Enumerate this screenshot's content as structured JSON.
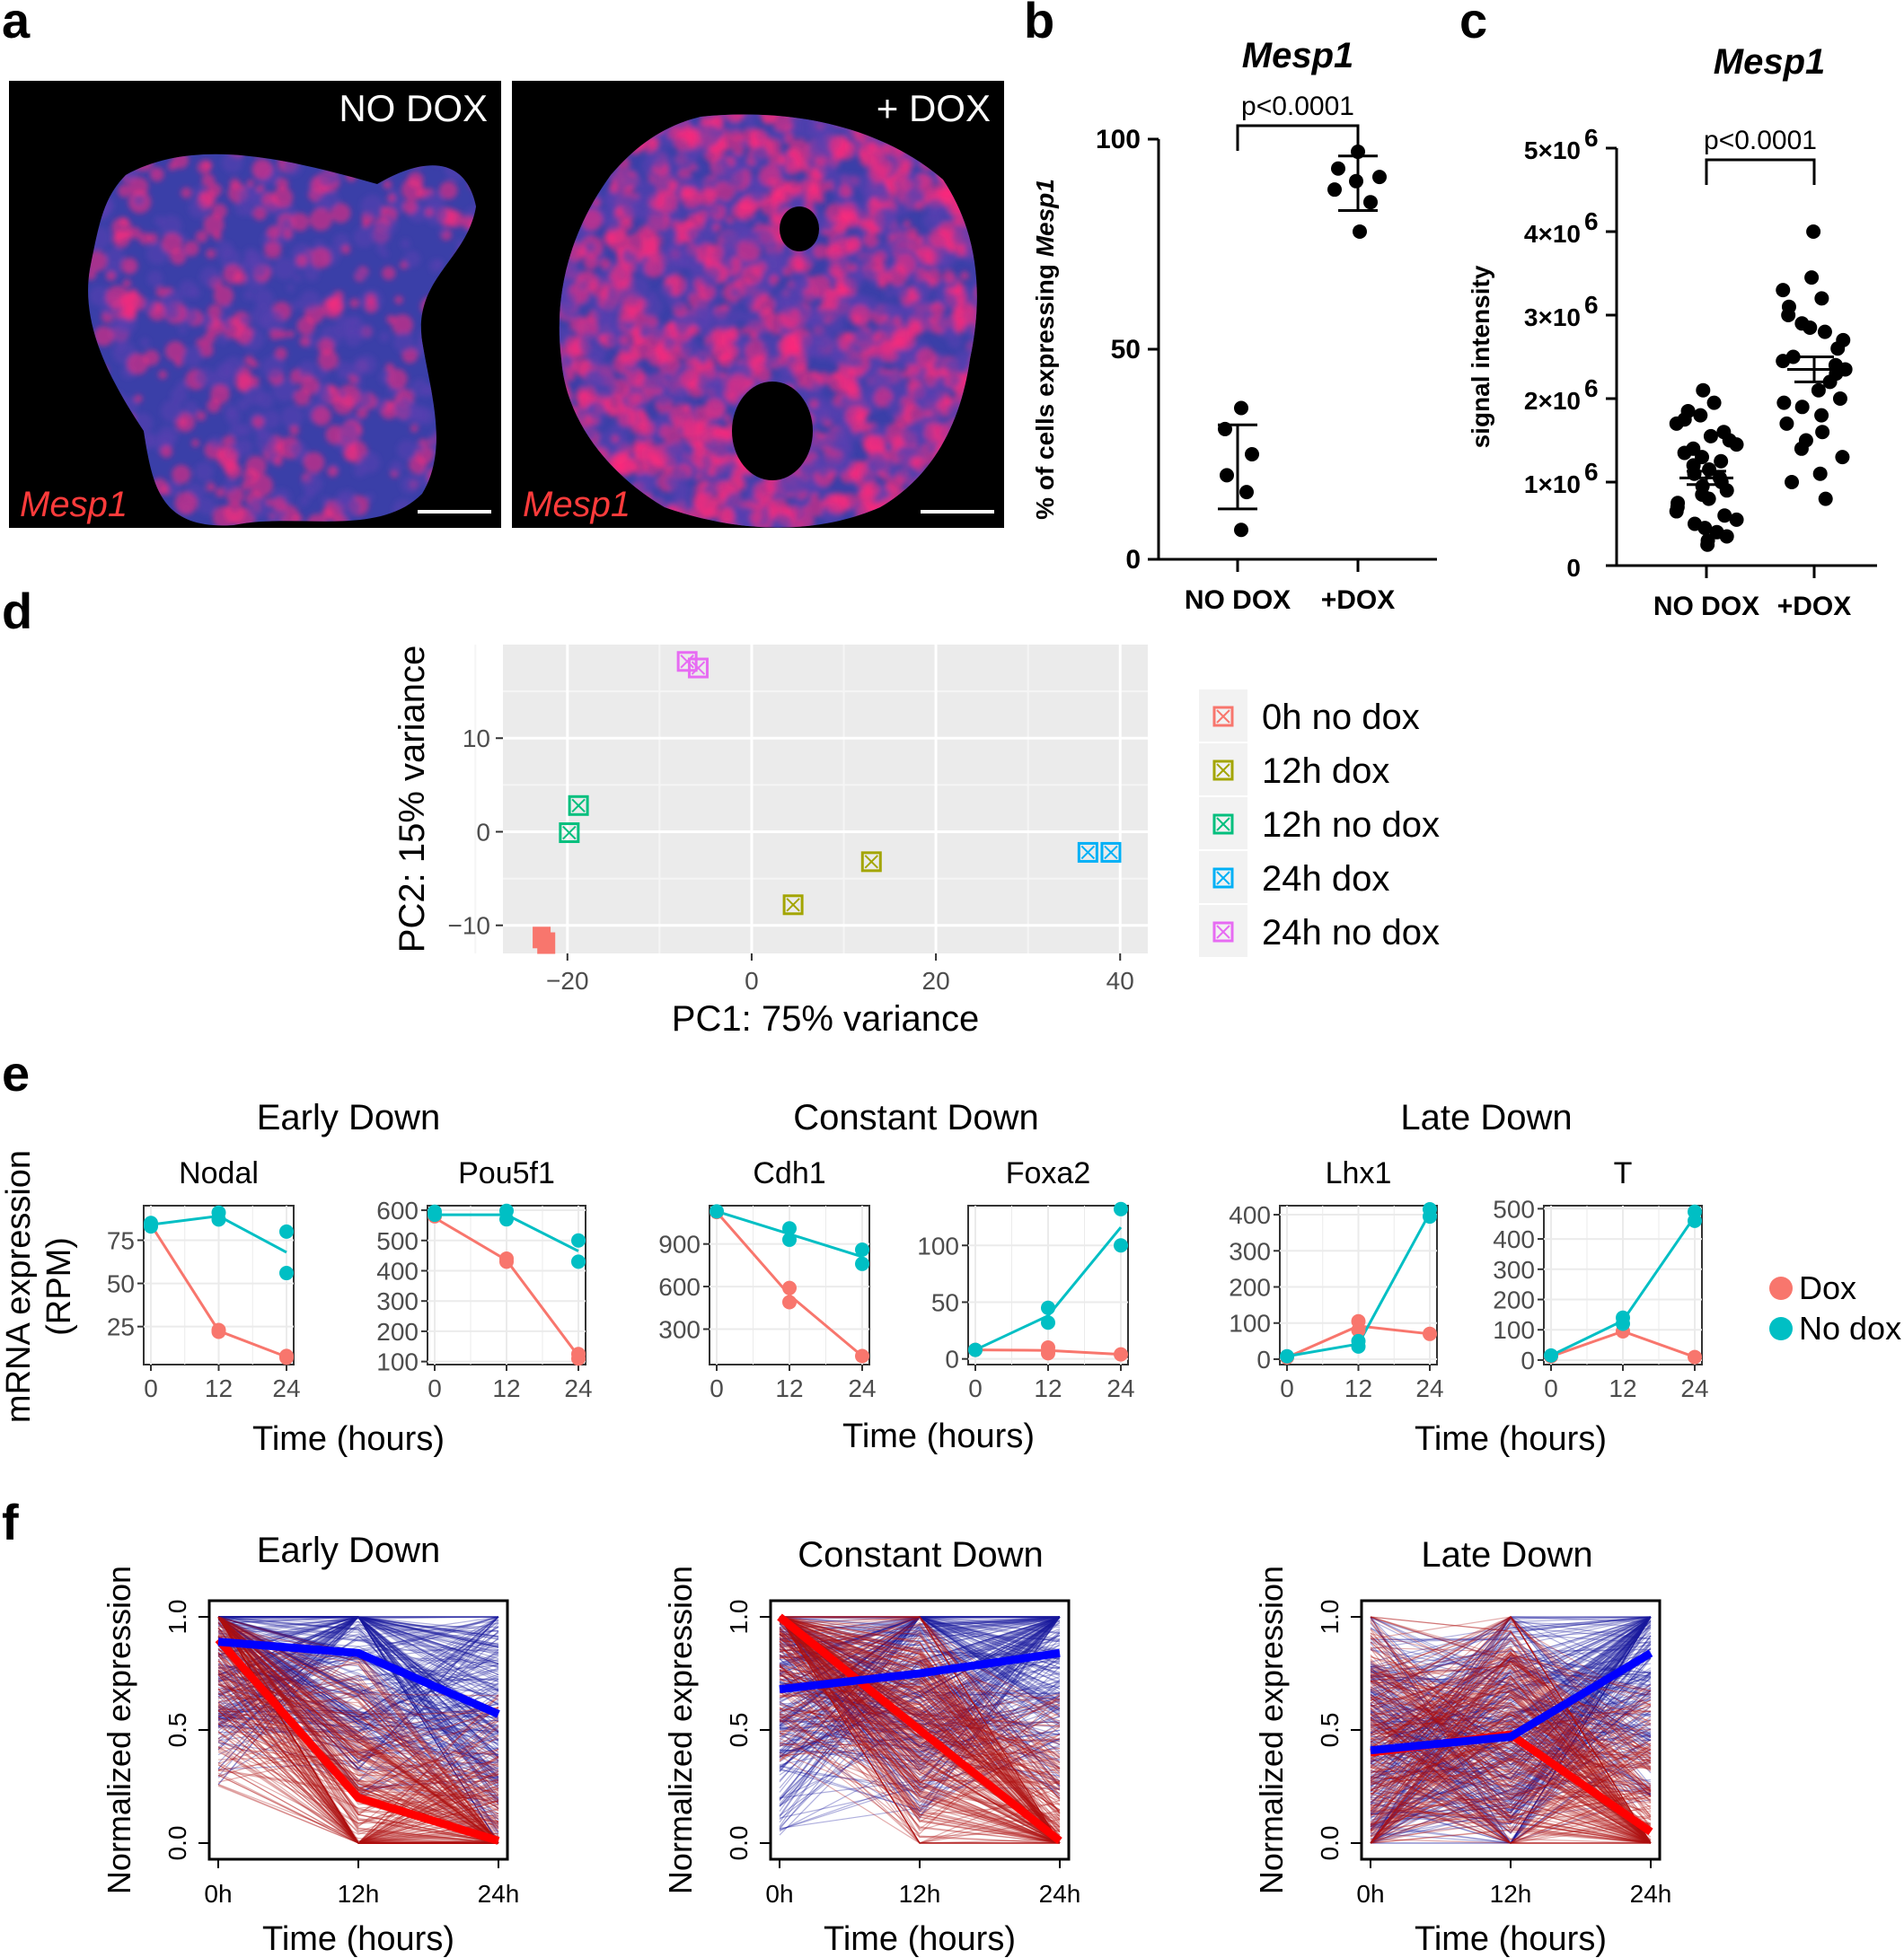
{
  "panels": {
    "a": "a",
    "b": "b",
    "c": "c",
    "d": "d",
    "e": "e",
    "f": "f"
  },
  "panel_a": {
    "left_label": "NO DOX",
    "right_label": "+ DOX",
    "gene_left": "Mesp1",
    "gene_right": "Mesp1",
    "colors": {
      "background": "#000000",
      "nuclei": "#3a3fa8",
      "signal": "#ff2a7a",
      "gene_text": "#ff3b3b"
    }
  },
  "chart_data": [
    {
      "id": "b",
      "type": "scatter",
      "title": "Mesp1",
      "ylabel": "% of cells expressing Mesp1",
      "ylabel_prefix": "% of cells expressing ",
      "ylabel_gene": "Mesp1",
      "categories": [
        "NO DOX",
        "+DOX"
      ],
      "ylim": [
        0,
        100
      ],
      "yticks": [
        "0",
        "50",
        "100"
      ],
      "groups": [
        {
          "name": "NO DOX",
          "values": [
            36,
            31,
            25,
            20,
            16,
            7
          ],
          "mean": 22,
          "sd_low": 12,
          "sd_high": 32
        },
        {
          "name": "+DOX",
          "values": [
            97,
            93,
            91,
            90,
            88,
            85,
            78
          ],
          "mean": 89,
          "sd_low": 83,
          "sd_high": 96
        }
      ],
      "annotation": "p<0.0001"
    },
    {
      "id": "c",
      "type": "scatter",
      "title": "Mesp1",
      "ylabel": "signal intensity",
      "categories": [
        "NO DOX",
        "+DOX"
      ],
      "ylim": [
        0,
        5000000
      ],
      "yticks": [
        {
          "base": "0"
        },
        {
          "base": "1×10",
          "exp": "6"
        },
        {
          "base": "2×10",
          "exp": "6"
        },
        {
          "base": "3×10",
          "exp": "6"
        },
        {
          "base": "4×10",
          "exp": "6"
        },
        {
          "base": "5×10",
          "exp": "6"
        }
      ],
      "groups": [
        {
          "name": "NO DOX",
          "values": [
            2.1,
            1.95,
            1.85,
            1.8,
            1.75,
            1.7,
            1.6,
            1.55,
            1.5,
            1.45,
            1.4,
            1.35,
            1.3,
            1.25,
            1.2,
            1.15,
            1.1,
            1.05,
            1.0,
            0.95,
            0.9,
            0.85,
            0.8,
            0.75,
            0.7,
            0.65,
            0.6,
            0.55,
            0.5,
            0.45,
            0.4,
            0.35,
            0.3,
            0.25
          ],
          "mean": 1.05,
          "sem_low": 0.97,
          "sem_high": 1.13
        },
        {
          "name": "+DOX",
          "values": [
            4.0,
            3.45,
            3.3,
            3.2,
            3.1,
            3.0,
            2.9,
            2.85,
            2.8,
            2.7,
            2.6,
            2.5,
            2.45,
            2.4,
            2.35,
            2.3,
            2.2,
            2.1,
            2.0,
            1.95,
            1.9,
            1.8,
            1.7,
            1.6,
            1.5,
            1.4,
            1.3,
            1.1,
            1.0,
            0.8
          ],
          "mean": 2.35,
          "sem_low": 2.2,
          "sem_high": 2.5
        }
      ],
      "annotation": "p<0.0001"
    },
    {
      "id": "d",
      "type": "scatter",
      "xlabel": "PC1: 75% variance",
      "ylabel": "PC2: 15% variance",
      "xlim": [
        -27,
        43
      ],
      "ylim": [
        -13,
        20
      ],
      "xticks": [
        "−20",
        "0",
        "20",
        "40"
      ],
      "yticks": [
        "−10",
        "0",
        "10"
      ],
      "series": [
        {
          "name": "0h no dox",
          "color": "#f8766d",
          "points": [
            [
              -22.8,
              -11.3
            ],
            [
              -22.3,
              -11.9
            ]
          ]
        },
        {
          "name": "12h dox",
          "color": "#a3a500",
          "points": [
            [
              4.5,
              -7.8
            ],
            [
              13,
              -3.2
            ]
          ]
        },
        {
          "name": "12h no dox",
          "color": "#00bf7d",
          "points": [
            [
              -19.8,
              -0.1
            ],
            [
              -18.8,
              2.8
            ]
          ]
        },
        {
          "name": "24h dox",
          "color": "#00b0f6",
          "points": [
            [
              36.5,
              -2.2
            ],
            [
              39,
              -2.2
            ]
          ]
        },
        {
          "name": "24h no dox",
          "color": "#e76bf3",
          "points": [
            [
              -7,
              18.2
            ],
            [
              -5.8,
              17.5
            ]
          ]
        }
      ]
    },
    {
      "id": "e",
      "type": "line",
      "ylabel": "mRNA expression",
      "ylabel2": "(RPM)",
      "xlabel": "Time (hours)",
      "x": [
        0,
        12,
        24
      ],
      "xticks": [
        "0",
        "12",
        "24"
      ],
      "group_titles": [
        "Early Down",
        "Constant Down",
        "Late Down"
      ],
      "legend": [
        {
          "name": "Dox",
          "color": "#f8766d"
        },
        {
          "name": "No dox",
          "color": "#00bfc4"
        }
      ],
      "subplots": [
        {
          "gene": "Nodal",
          "ylim": [
            3,
            95
          ],
          "yticks": [
            {
              "label": "25",
              "value": 25
            },
            {
              "label": "50",
              "value": 50
            },
            {
              "label": "75",
              "value": 75
            }
          ],
          "dox": {
            "pts": [
              [
                0,
                84
              ],
              [
                12,
                23
              ],
              [
                12,
                22
              ],
              [
                24,
                8
              ],
              [
                24,
                7
              ]
            ],
            "line": [
              84,
              22.5,
              7.5
            ]
          },
          "nodox": {
            "pts": [
              [
                0,
                85
              ],
              [
                0,
                83
              ],
              [
                12,
                91
              ],
              [
                12,
                87
              ],
              [
                24,
                80
              ],
              [
                24,
                56
              ]
            ],
            "line": [
              84,
              89,
              68
            ]
          }
        },
        {
          "gene": "Pou5f1",
          "ylim": [
            90,
            615
          ],
          "yticks": [
            {
              "label": "100",
              "value": 100
            },
            {
              "label": "200",
              "value": 200
            },
            {
              "label": "300",
              "value": 300
            },
            {
              "label": "400",
              "value": 400
            },
            {
              "label": "500",
              "value": 500
            },
            {
              "label": "600",
              "value": 600
            }
          ],
          "dox": {
            "pts": [
              [
                0,
                580
              ],
              [
                12,
                440
              ],
              [
                12,
                430
              ],
              [
                24,
                125
              ],
              [
                24,
                110
              ]
            ],
            "line": [
              575,
              435,
              118
            ]
          },
          "nodox": {
            "pts": [
              [
                0,
                595
              ],
              [
                0,
                585
              ],
              [
                12,
                598
              ],
              [
                12,
                570
              ],
              [
                24,
                500
              ],
              [
                24,
                430
              ]
            ],
            "line": [
              585,
              585,
              465
            ]
          }
        },
        {
          "gene": "Cdh1",
          "ylim": [
            50,
            1170
          ],
          "yticks": [
            {
              "label": "300",
              "value": 300
            },
            {
              "label": "600",
              "value": 600
            },
            {
              "label": "900",
              "value": 900
            }
          ],
          "dox": {
            "pts": [
              [
                0,
                1125
              ],
              [
                12,
                590
              ],
              [
                12,
                490
              ],
              [
                24,
                110
              ]
            ],
            "line": [
              1125,
              540,
              110
            ]
          },
          "nodox": {
            "pts": [
              [
                0,
                1130
              ],
              [
                12,
                1010
              ],
              [
                12,
                930
              ],
              [
                24,
                860
              ],
              [
                24,
                760
              ]
            ],
            "line": [
              1130,
              970,
              810
            ]
          }
        },
        {
          "gene": "Foxa2",
          "ylim": [
            -5,
            135
          ],
          "yticks": [
            {
              "label": "0",
              "value": 0
            },
            {
              "label": "50",
              "value": 50
            },
            {
              "label": "100",
              "value": 100
            }
          ],
          "dox": {
            "pts": [
              [
                0,
                8
              ],
              [
                12,
                10
              ],
              [
                12,
                5
              ],
              [
                24,
                4
              ]
            ],
            "line": [
              8,
              7.5,
              4
            ]
          },
          "nodox": {
            "pts": [
              [
                0,
                8
              ],
              [
                12,
                45
              ],
              [
                12,
                32
              ],
              [
                24,
                132
              ],
              [
                24,
                100
              ]
            ],
            "line": [
              8,
              38,
              116
            ]
          }
        },
        {
          "gene": "Lhx1",
          "ylim": [
            -15,
            425
          ],
          "yticks": [
            {
              "label": "0",
              "value": 0
            },
            {
              "label": "100",
              "value": 100
            },
            {
              "label": "200",
              "value": 200
            },
            {
              "label": "300",
              "value": 300
            },
            {
              "label": "400",
              "value": 400
            }
          ],
          "dox": {
            "pts": [
              [
                0,
                5
              ],
              [
                12,
                105
              ],
              [
                12,
                80
              ],
              [
                24,
                70
              ]
            ],
            "line": [
              5,
              92,
              70
            ]
          },
          "nodox": {
            "pts": [
              [
                0,
                8
              ],
              [
                12,
                50
              ],
              [
                12,
                35
              ],
              [
                24,
                415
              ],
              [
                24,
                395
              ]
            ],
            "line": [
              8,
              42,
              405
            ]
          }
        },
        {
          "gene": "T",
          "ylim": [
            -15,
            510
          ],
          "yticks": [
            {
              "label": "0",
              "value": 0
            },
            {
              "label": "100",
              "value": 100
            },
            {
              "label": "200",
              "value": 200
            },
            {
              "label": "300",
              "value": 300
            },
            {
              "label": "400",
              "value": 400
            },
            {
              "label": "500",
              "value": 500
            }
          ],
          "dox": {
            "pts": [
              [
                0,
                12
              ],
              [
                12,
                95
              ],
              [
                24,
                10
              ]
            ],
            "line": [
              12,
              95,
              10
            ]
          },
          "nodox": {
            "pts": [
              [
                0,
                15
              ],
              [
                12,
                140
              ],
              [
                12,
                120
              ],
              [
                24,
                490
              ],
              [
                24,
                460
              ]
            ],
            "line": [
              15,
              130,
              475
            ]
          }
        }
      ]
    },
    {
      "id": "f",
      "type": "line",
      "ylabel": "Normalized expression",
      "xlabel": "Time (hours)",
      "x": [
        "0h",
        "12h",
        "24h"
      ],
      "ylim": [
        0,
        1
      ],
      "yticks": [
        "0.0",
        "0.5",
        "1.0"
      ],
      "subplots": [
        {
          "title": "Early Down",
          "dox_mean": [
            0.9,
            0.2,
            0.01
          ],
          "nodox_mean": [
            0.89,
            0.84,
            0.57
          ]
        },
        {
          "title": "Constant Down",
          "dox_mean": [
            1.0,
            0.5,
            0.01
          ],
          "nodox_mean": [
            0.68,
            0.75,
            0.84
          ]
        },
        {
          "title": "Late Down",
          "dox_mean": [
            0.4,
            0.48,
            0.05
          ],
          "nodox_mean": [
            0.41,
            0.47,
            0.84
          ]
        }
      ]
    }
  ]
}
